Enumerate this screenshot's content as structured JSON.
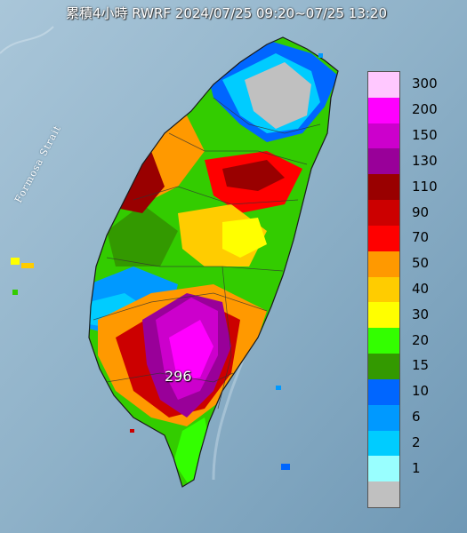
{
  "title": "累積4小時 RWRF 2024/07/25 09:20~07/25 13:20",
  "strait_label": "Formosa Strait",
  "max_value": "296",
  "legend": {
    "levels": [
      {
        "label": "300",
        "color": "#ffc8ff"
      },
      {
        "label": "200",
        "color": "#ff00ff"
      },
      {
        "label": "150",
        "color": "#cc00cc"
      },
      {
        "label": "130",
        "color": "#990099"
      },
      {
        "label": "110",
        "color": "#990000"
      },
      {
        "label": "90",
        "color": "#cc0000"
      },
      {
        "label": "70",
        "color": "#ff0000"
      },
      {
        "label": "50",
        "color": "#ff9900"
      },
      {
        "label": "40",
        "color": "#ffcc00"
      },
      {
        "label": "30",
        "color": "#ffff00"
      },
      {
        "label": "20",
        "color": "#33ff00"
      },
      {
        "label": "15",
        "color": "#339900"
      },
      {
        "label": "10",
        "color": "#0066ff"
      },
      {
        "label": "6",
        "color": "#0099ff"
      },
      {
        "label": "2",
        "color": "#00ccff"
      },
      {
        "label": "1",
        "color": "#99ffff"
      },
      {
        "label": "",
        "color": "#c0c0c0"
      }
    ]
  }
}
